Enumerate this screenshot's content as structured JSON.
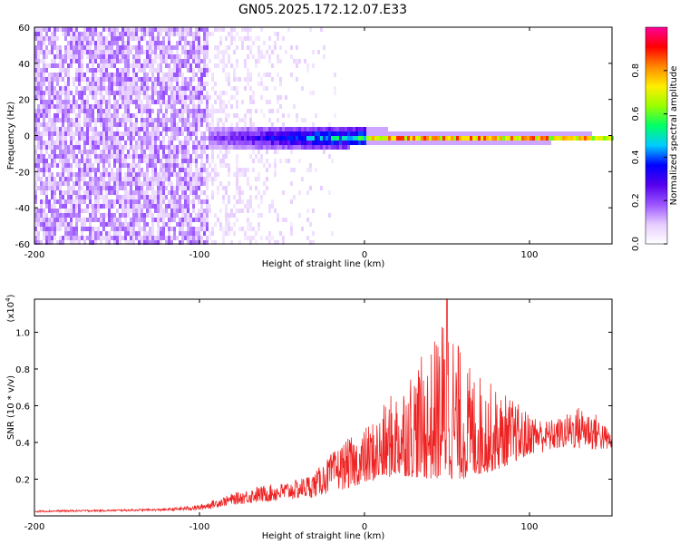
{
  "chart_data": [
    {
      "type": "heatmap",
      "title": "GN05.2025.172.12.07.E33",
      "xlabel": "Height of straight line (km)",
      "ylabel": "Frequency (Hz)",
      "xlim": [
        -200,
        150
      ],
      "ylim": [
        -60,
        60
      ],
      "xticks": [
        -200,
        -100,
        0,
        100
      ],
      "yticks": [
        -60,
        -40,
        -20,
        0,
        20,
        40,
        60
      ],
      "colorbar": {
        "label": "Normalized spectral amplitude",
        "range": [
          0,
          1
        ],
        "ticks": [
          "0.0",
          "0.2",
          "0.4",
          "0.6",
          "0.8"
        ],
        "colormap": [
          "#ffffff",
          "#e6ccff",
          "#9b55ff",
          "#5500ee",
          "#0000ff",
          "#00ccff",
          "#00ff66",
          "#99ff00",
          "#ffee00",
          "#ff8800",
          "#ff0000",
          "#ff0099"
        ]
      },
      "description_values": {
        "noise_region_x": [
          -200,
          -95
        ],
        "noise_mean_amplitude": 0.12,
        "signal_onset_x": -95,
        "signal_center_freq": 0,
        "signal_halfwidth_hz_at_onset": 7,
        "signal_halfwidth_hz_at_end": 2,
        "peak_amplitude_range_x": [
          0,
          150
        ],
        "peak_amplitude": 0.85
      }
    },
    {
      "type": "line",
      "xlabel": "Height of straight line (km)",
      "ylabel": "SNR (10 * v/v)",
      "yscale_label": "(x10",
      "yscale_exp": "4",
      "ylabel_suffix": ")",
      "xlim": [
        -200,
        150
      ],
      "ylim": [
        0,
        1.18
      ],
      "xticks": [
        -200,
        -100,
        0,
        100
      ],
      "yticks": [
        "0.2",
        "0.4",
        "0.6",
        "0.8",
        "1.0"
      ],
      "color": "#ee2222",
      "envelope": {
        "x": [
          -200,
          -150,
          -120,
          -100,
          -80,
          -65,
          -50,
          -40,
          -30,
          -20,
          -10,
          0,
          10,
          20,
          30,
          40,
          50,
          60,
          70,
          80,
          90,
          100,
          110,
          120,
          130,
          140,
          150
        ],
        "y": [
          0.03,
          0.035,
          0.04,
          0.06,
          0.12,
          0.16,
          0.18,
          0.2,
          0.24,
          0.34,
          0.42,
          0.48,
          0.58,
          0.72,
          0.84,
          0.9,
          1.18,
          0.84,
          0.78,
          0.7,
          0.64,
          0.56,
          0.52,
          0.54,
          0.6,
          0.56,
          0.45
        ]
      },
      "baseline": {
        "x": [
          -200,
          -100,
          -80,
          -50,
          -30,
          -10,
          0,
          20,
          40,
          60,
          80,
          100,
          120,
          150
        ],
        "y": [
          0.02,
          0.03,
          0.06,
          0.08,
          0.1,
          0.15,
          0.18,
          0.22,
          0.2,
          0.2,
          0.25,
          0.33,
          0.36,
          0.35
        ]
      }
    }
  ]
}
